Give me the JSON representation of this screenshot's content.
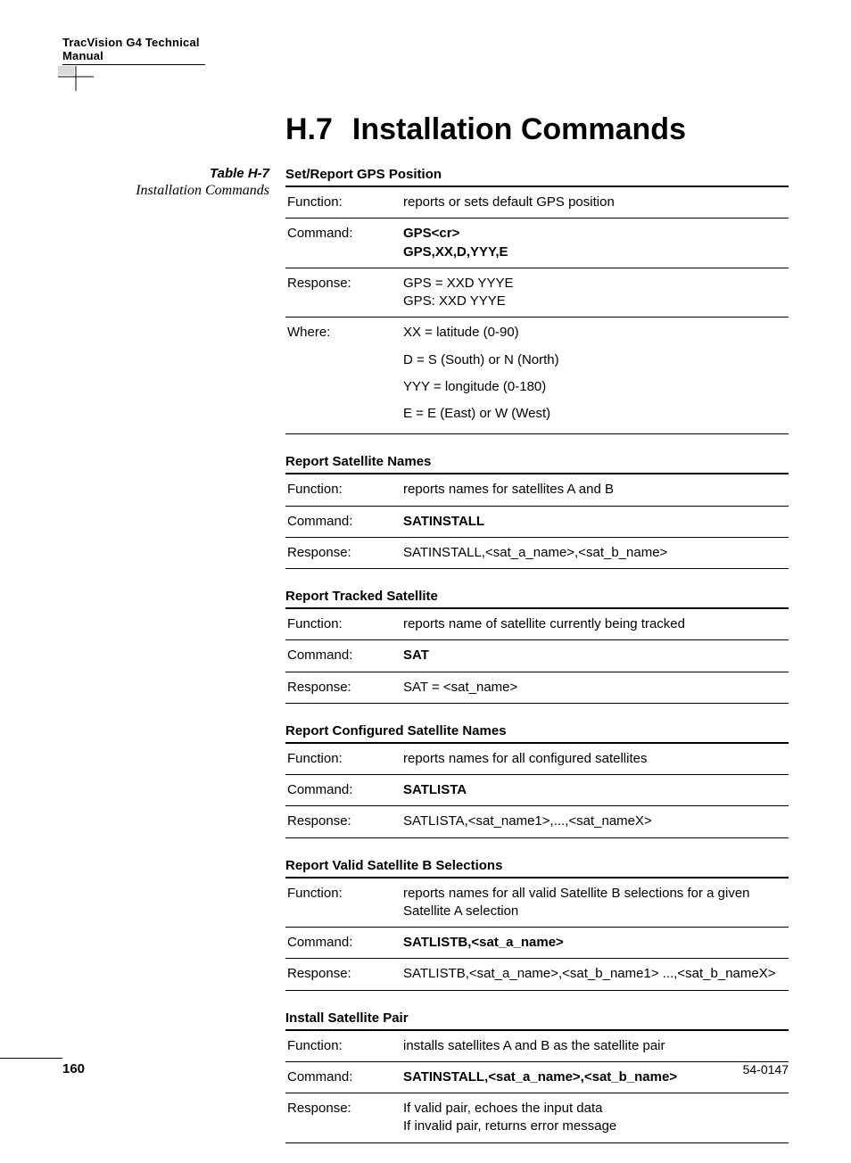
{
  "header": {
    "title": "TracVision G4 Technical Manual"
  },
  "tableLabel": {
    "num": "Table H-7",
    "caption": "Installation Commands"
  },
  "section": {
    "num": "H.7",
    "title": "Installation Commands"
  },
  "blocks": [
    {
      "title": "Set/Report GPS Position",
      "rows": [
        {
          "key": "Function:",
          "val": "reports or sets default GPS position"
        },
        {
          "key": "Command:",
          "val": "GPS<cr>\nGPS,XX,D,YYY,E",
          "bold": true
        },
        {
          "key": "Response:",
          "val": "GPS = XXD YYYE\nGPS: XXD YYYE"
        },
        {
          "key": "Where:",
          "where": [
            "XX = latitude (0-90)",
            "D = S (South) or N (North)",
            "YYY = longitude (0-180)",
            "E = E (East) or W (West)"
          ]
        }
      ]
    },
    {
      "title": "Report Satellite Names",
      "rows": [
        {
          "key": "Function:",
          "val": "reports names for satellites A and B"
        },
        {
          "key": "Command:",
          "val": "SATINSTALL",
          "bold": true
        },
        {
          "key": "Response:",
          "val": "SATINSTALL,<sat_a_name>,<sat_b_name>"
        }
      ]
    },
    {
      "title": "Report Tracked Satellite",
      "rows": [
        {
          "key": "Function:",
          "val": "reports name of satellite currently being tracked"
        },
        {
          "key": "Command:",
          "val": "SAT",
          "bold": true
        },
        {
          "key": "Response:",
          "val": "SAT = <sat_name>"
        }
      ]
    },
    {
      "title": "Report Configured Satellite Names",
      "rows": [
        {
          "key": "Function:",
          "val": "reports names for all configured satellites"
        },
        {
          "key": "Command:",
          "val": "SATLISTA",
          "bold": true
        },
        {
          "key": "Response:",
          "val": "SATLISTA,<sat_name1>,...,<sat_nameX>"
        }
      ]
    },
    {
      "title": "Report Valid Satellite B Selections",
      "rows": [
        {
          "key": "Function:",
          "val": "reports names for all valid Satellite B selections for a given Satellite A selection"
        },
        {
          "key": "Command:",
          "val": "SATLISTB,<sat_a_name>",
          "bold": true
        },
        {
          "key": "Response:",
          "val": "SATLISTB,<sat_a_name>,<sat_b_name1> ...,<sat_b_nameX>"
        }
      ]
    },
    {
      "title": "Install Satellite Pair",
      "rows": [
        {
          "key": "Function:",
          "val": "installs satellites A and B as the satellite pair"
        },
        {
          "key": "Command:",
          "val": "SATINSTALL,<sat_a_name>,<sat_b_name>",
          "bold": true
        },
        {
          "key": "Response:",
          "val": "If valid pair, echoes the input data\nIf invalid pair, returns error message"
        }
      ]
    }
  ],
  "footer": {
    "page": "160",
    "docnum": "54-0147"
  }
}
